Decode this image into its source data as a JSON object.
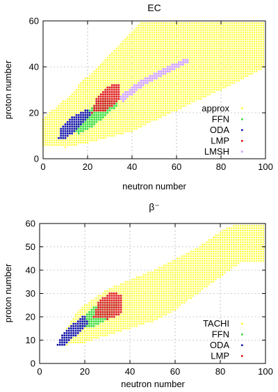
{
  "colors": {
    "yellow": "#ffff33",
    "green": "#33dd33",
    "blue": "#1111aa",
    "red": "#dd1111",
    "violet": "#cc99ff"
  },
  "chart_data": [
    {
      "type": "scatter",
      "title": "EC",
      "xlabel": "neutron number",
      "ylabel": "proton number",
      "xlim": [
        0,
        100
      ],
      "ylim": [
        0,
        60
      ],
      "xticks": [
        "0",
        "20",
        "40",
        "60",
        "80",
        "100"
      ],
      "yticks": [
        "0",
        "20",
        "40",
        "60"
      ],
      "legend_position": "bottom-right",
      "grid": true,
      "series": [
        {
          "name": "approx",
          "color": "#ffff33",
          "region": [
            [
              0,
              6
            ],
            [
              0,
              18
            ],
            [
              10,
              26
            ],
            [
              20,
              36
            ],
            [
              35,
              50
            ],
            [
              45,
              60
            ],
            [
              100,
              60
            ],
            [
              100,
              40
            ],
            [
              80,
              30
            ],
            [
              60,
              21
            ],
            [
              40,
              12
            ],
            [
              20,
              7
            ],
            [
              10,
              5
            ]
          ]
        },
        {
          "name": "FFN",
          "color": "#33dd33",
          "region": [
            [
              14,
              13
            ],
            [
              20,
              20
            ],
            [
              24,
              25
            ],
            [
              28,
              27
            ],
            [
              34,
              24
            ],
            [
              30,
              20
            ],
            [
              22,
              14
            ],
            [
              16,
              11
            ]
          ]
        },
        {
          "name": "ODA",
          "color": "#1111aa",
          "region": [
            [
              7,
              9
            ],
            [
              8,
              14
            ],
            [
              14,
              19
            ],
            [
              20,
              22
            ],
            [
              22,
              19
            ],
            [
              16,
              13
            ],
            [
              10,
              9
            ]
          ]
        },
        {
          "name": "LMP",
          "color": "#dd1111",
          "region": [
            [
              22,
              20
            ],
            [
              24,
              27
            ],
            [
              30,
              32
            ],
            [
              35,
              33
            ],
            [
              34,
              25
            ],
            [
              28,
              21
            ]
          ]
        },
        {
          "name": "LMSH",
          "color": "#cc99ff",
          "region": [
            [
              34,
              27
            ],
            [
              45,
              35
            ],
            [
              55,
              40
            ],
            [
              65,
              44
            ],
            [
              66,
              42
            ],
            [
              55,
              37
            ],
            [
              44,
              31
            ],
            [
              36,
              25
            ]
          ]
        }
      ]
    },
    {
      "type": "scatter",
      "title": "β⁻",
      "xlabel": "neutron number",
      "ylabel": "proton number",
      "xlim": [
        0,
        100
      ],
      "ylim": [
        0,
        60
      ],
      "xticks": [
        "0",
        "20",
        "40",
        "60",
        "80",
        "100"
      ],
      "yticks": [
        "0",
        "10",
        "20",
        "30",
        "40",
        "50",
        "60"
      ],
      "legend_position": "bottom-right",
      "grid": true,
      "series": [
        {
          "name": "TACHI",
          "color": "#ffff33",
          "region": [
            [
              10,
              9
            ],
            [
              10,
              12
            ],
            [
              18,
              24
            ],
            [
              30,
              32
            ],
            [
              50,
              40
            ],
            [
              70,
              50
            ],
            [
              82,
              58
            ],
            [
              88,
              60
            ],
            [
              100,
              60
            ],
            [
              100,
              43
            ],
            [
              90,
              44
            ],
            [
              80,
              37
            ],
            [
              70,
              30
            ],
            [
              60,
              23
            ],
            [
              50,
              18
            ],
            [
              40,
              15
            ],
            [
              30,
              12
            ],
            [
              20,
              9
            ],
            [
              12,
              8
            ]
          ]
        },
        {
          "name": "FFN",
          "color": "#33dd33",
          "region": [
            [
              18,
              16
            ],
            [
              22,
              23
            ],
            [
              28,
              27
            ],
            [
              36,
              27
            ],
            [
              32,
              20
            ],
            [
              24,
              16
            ]
          ]
        },
        {
          "name": "ODA",
          "color": "#1111aa",
          "region": [
            [
              8,
              8
            ],
            [
              10,
              13
            ],
            [
              16,
              18
            ],
            [
              20,
              21
            ],
            [
              22,
              17
            ],
            [
              16,
              12
            ],
            [
              12,
              8
            ]
          ]
        },
        {
          "name": "LMP",
          "color": "#dd1111",
          "region": [
            [
              24,
              20
            ],
            [
              26,
              27
            ],
            [
              32,
              31
            ],
            [
              37,
              29
            ],
            [
              36,
              21
            ],
            [
              30,
              19
            ]
          ]
        }
      ]
    }
  ]
}
